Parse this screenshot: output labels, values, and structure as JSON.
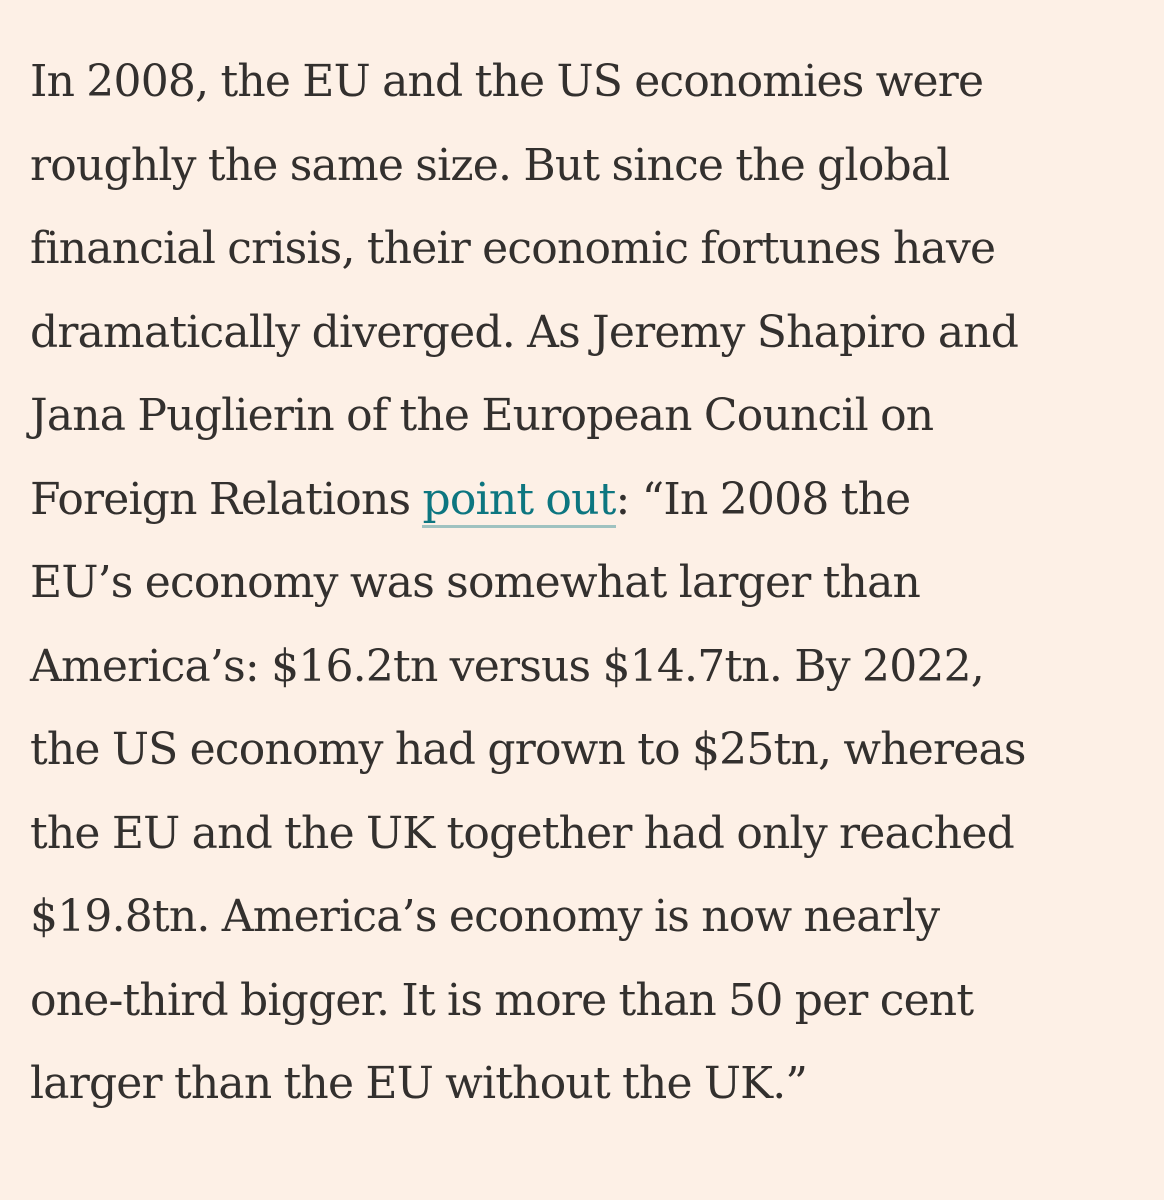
{
  "article": {
    "lines": [
      "In 2008, the EU and the US economies were",
      "roughly the same size. But since the global",
      "financial crisis, their economic fortunes have",
      "dramatically diverged. As Jeremy Shapiro and",
      "Jana Puglierin of the European Council on"
    ],
    "link_line_before": "Foreign Relations ",
    "link_text": "point out",
    "link_line_after": ": “In 2008 the",
    "lines_after": [
      "EU’s economy was somewhat larger than",
      "America’s: $16.2tn versus $14.7tn. By 2022,",
      "the US economy had grown to $25tn, whereas",
      "the EU and the UK together had only reached",
      "$19.8tn. America’s economy is now nearly",
      "one-third bigger. It is more than 50 per cent",
      "larger than the EU without the UK.”"
    ]
  },
  "colors": {
    "background": "#fdf0e6",
    "text": "#33302e",
    "link": "#0d7680"
  }
}
